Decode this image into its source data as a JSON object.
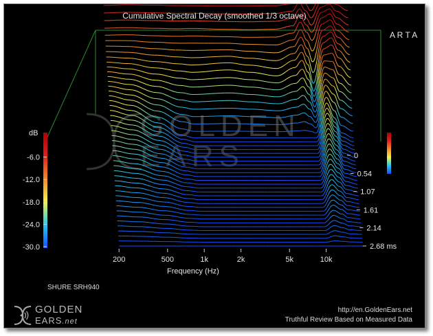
{
  "chart_data": {
    "type": "waterfall",
    "title": "Cumulative Spectral Decay (smoothed 1/3 octave)",
    "xlabel": "Frequency (Hz)",
    "ylabel": "dB",
    "zlabel": "ms",
    "x_scale": "log",
    "x_ticks": [
      "200",
      "500",
      "1k",
      "2k",
      "5k",
      "10k"
    ],
    "x_tick_values": [
      200,
      500,
      1000,
      2000,
      5000,
      10000
    ],
    "xlim": [
      150,
      20000
    ],
    "y_ticks": [
      "-6.0",
      "-12.0",
      "-18.0",
      "-24.0",
      "-30.0"
    ],
    "y_tick_values": [
      -6,
      -12,
      -18,
      -24,
      -30
    ],
    "ylim": [
      -30,
      0
    ],
    "z_ticks": [
      "0",
      "0.54",
      "1.07",
      "1.61",
      "2.14",
      "2.68 ms"
    ],
    "z_tick_values": [
      0,
      0.54,
      1.07,
      1.61,
      2.14,
      2.68
    ],
    "colormap": [
      "#1a4dff",
      "#22c8f0",
      "#f2f24a",
      "#f08a2a",
      "#e02020",
      "#b00000"
    ],
    "slice_count": 48,
    "series": [
      {
        "time_ms": 0,
        "freq": [
          200,
          300,
          500,
          800,
          1000,
          2000,
          3000,
          5000,
          7000,
          8000,
          9000,
          10000,
          12000,
          14000,
          16000,
          20000
        ],
        "db": [
          -3.5,
          -3.2,
          -3.3,
          -3.5,
          -3.6,
          -3.7,
          -3.6,
          -3.5,
          -3.0,
          -0.3,
          -3.0,
          -5.8,
          -1.0,
          -0.4,
          -1.0,
          -3.0
        ]
      },
      {
        "time_ms": 0.27,
        "freq": [
          200,
          300,
          500,
          800,
          1000,
          2000,
          3000,
          5000,
          7000,
          8000,
          9000,
          10000,
          12000,
          14000,
          16000,
          20000
        ],
        "db": [
          -10.5,
          -10.3,
          -10.6,
          -10.8,
          -10.6,
          -11.0,
          -11.2,
          -11.0,
          -9.5,
          -5.0,
          -9.0,
          -12.0,
          -3.5,
          -2.0,
          -6.0,
          -9.0
        ]
      },
      {
        "time_ms": 0.54,
        "freq": [
          200,
          300,
          500,
          800,
          1000,
          2000,
          3000,
          5000,
          7000,
          8000,
          9000,
          10000,
          12000,
          14000,
          16000,
          20000
        ],
        "db": [
          -13.5,
          -14.0,
          -15.5,
          -16.5,
          -17.0,
          -16.0,
          -17.0,
          -18.5,
          -15.0,
          -12.0,
          -17.0,
          -25.0,
          -8.0,
          -6.0,
          -11.0,
          -16.0
        ]
      },
      {
        "time_ms": 1.07,
        "freq": [
          200,
          300,
          500,
          800,
          1000,
          2000,
          3000,
          5000,
          7000,
          8000,
          9000,
          10000,
          12000,
          14000,
          16000,
          20000
        ],
        "db": [
          -17.0,
          -19.0,
          -24.0,
          -29.0,
          -30.0,
          -30.0,
          -30.0,
          -30.0,
          -30.0,
          -30.0,
          -30.0,
          -30.0,
          -16.0,
          -22.0,
          -28.0,
          -30.0
        ]
      },
      {
        "time_ms": 2.68,
        "freq": [
          200,
          300,
          500,
          800,
          1000,
          2000,
          3000,
          5000,
          7000,
          8000,
          9000,
          10000,
          12000,
          14000,
          16000,
          20000
        ],
        "db": [
          -30.0,
          -30.0,
          -30.0,
          -30.0,
          -30.0,
          -30.0,
          -30.0,
          -30.0,
          -30.0,
          -30.0,
          -30.0,
          -30.0,
          -30.0,
          -30.0,
          -30.0,
          -30.0
        ]
      }
    ]
  },
  "labels": {
    "title": "Cumulative Spectral Decay (smoothed 1/3 octave)",
    "xlabel": "Frequency (Hz)",
    "ylabel": "dB",
    "software": "A R T A",
    "device": "SHURE SRH940",
    "url": "http://en.GoldenEars.net",
    "tagline": "Truthful Review Based on Measured Data",
    "logo_top": "GOLDEN",
    "logo_bottom": "EARS",
    "logo_suffix": ".net",
    "watermark_top": "GOLDEN",
    "watermark_bottom": "EARS"
  },
  "colors": {
    "background": "#000000",
    "frame": "#2c8a2c",
    "axis_text": "#e6e6e6",
    "floor": "#1a4dff"
  }
}
